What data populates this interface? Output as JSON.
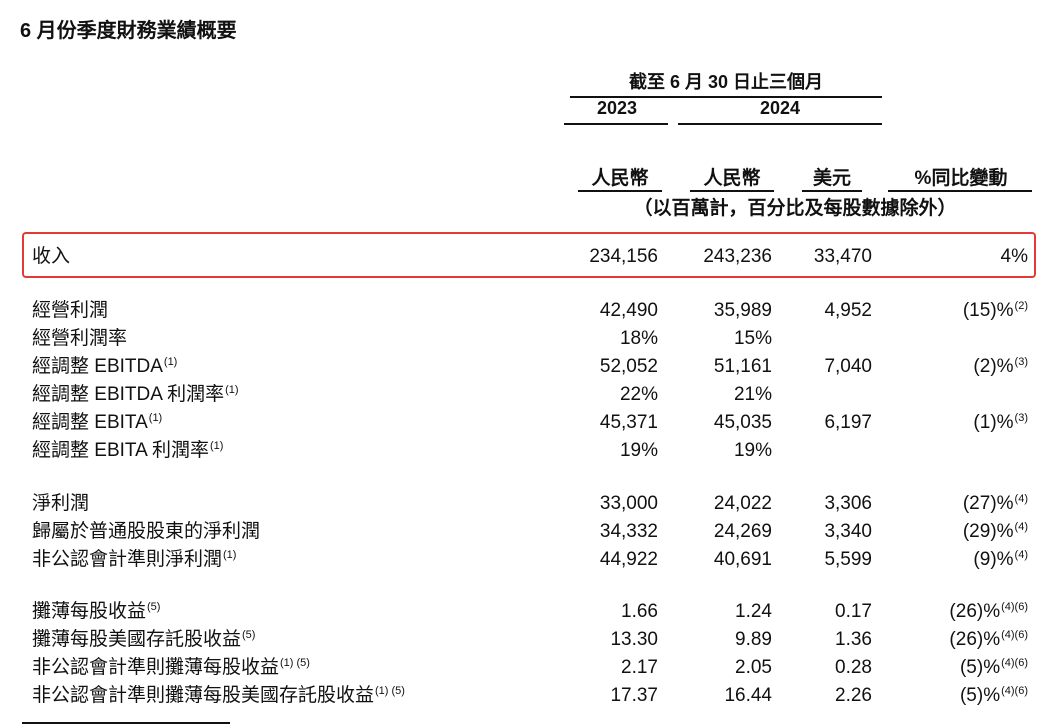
{
  "title": "6 月份季度財務業績概要",
  "header": {
    "period": "截至 6 月 30 日止三個月",
    "year_2023": "2023",
    "year_2024": "2024",
    "col_rmb_2023": "人民幣",
    "col_rmb_2024": "人民幣",
    "col_usd": "美元",
    "col_yoy": "%同比變動",
    "unit_note": "（以百萬計，百分比及每股數據除外）"
  },
  "rows": [
    {
      "label": "收入",
      "label_note": "",
      "v2023": "234,156",
      "v2024": "243,236",
      "usd": "33,470",
      "yoy": "4%",
      "yoy_note": ""
    },
    {
      "label": "經營利潤",
      "label_note": "",
      "v2023": "42,490",
      "v2024": "35,989",
      "usd": "4,952",
      "yoy": "(15)%",
      "yoy_note": "(2)"
    },
    {
      "label": "經營利潤率",
      "label_note": "",
      "v2023": "18%",
      "v2024": "15%",
      "usd": "",
      "yoy": "",
      "yoy_note": ""
    },
    {
      "label": "經調整 EBITDA",
      "label_note": "(1)",
      "v2023": "52,052",
      "v2024": "51,161",
      "usd": "7,040",
      "yoy": "(2)%",
      "yoy_note": "(3)"
    },
    {
      "label": "經調整 EBITDA 利潤率",
      "label_note": "(1)",
      "v2023": "22%",
      "v2024": "21%",
      "usd": "",
      "yoy": "",
      "yoy_note": ""
    },
    {
      "label": "經調整 EBITA",
      "label_note": "(1)",
      "v2023": "45,371",
      "v2024": "45,035",
      "usd": "6,197",
      "yoy": "(1)%",
      "yoy_note": "(3)"
    },
    {
      "label": "經調整 EBITA 利潤率",
      "label_note": "(1)",
      "v2023": "19%",
      "v2024": "19%",
      "usd": "",
      "yoy": "",
      "yoy_note": ""
    },
    {
      "label": "淨利潤",
      "label_note": "",
      "v2023": "33,000",
      "v2024": "24,022",
      "usd": "3,306",
      "yoy": "(27)%",
      "yoy_note": "(4)"
    },
    {
      "label": "歸屬於普通股股東的淨利潤",
      "label_note": "",
      "v2023": "34,332",
      "v2024": "24,269",
      "usd": "3,340",
      "yoy": "(29)%",
      "yoy_note": "(4)"
    },
    {
      "label": "非公認會計準則淨利潤",
      "label_note": "(1)",
      "v2023": "44,922",
      "v2024": "40,691",
      "usd": "5,599",
      "yoy": "(9)%",
      "yoy_note": "(4)"
    },
    {
      "label": "攤薄每股收益",
      "label_note": "(5)",
      "v2023": "1.66",
      "v2024": "1.24",
      "usd": "0.17",
      "yoy": "(26)%",
      "yoy_note": "(4)(6)"
    },
    {
      "label": "攤薄每股美國存託股收益",
      "label_note": "(5)",
      "v2023": "13.30",
      "v2024": "9.89",
      "usd": "1.36",
      "yoy": "(26)%",
      "yoy_note": "(4)(6)"
    },
    {
      "label": "非公認會計準則攤薄每股收益",
      "label_note": "(1) (5)",
      "v2023": "2.17",
      "v2024": "2.05",
      "usd": "0.28",
      "yoy": "(5)%",
      "yoy_note": "(4)(6)"
    },
    {
      "label": "非公認會計準則攤薄每股美國存託股收益",
      "label_note": "(1) (5)",
      "v2023": "17.37",
      "v2024": "16.44",
      "usd": "2.26",
      "yoy": "(5)%",
      "yoy_note": "(4)(6)"
    }
  ]
}
